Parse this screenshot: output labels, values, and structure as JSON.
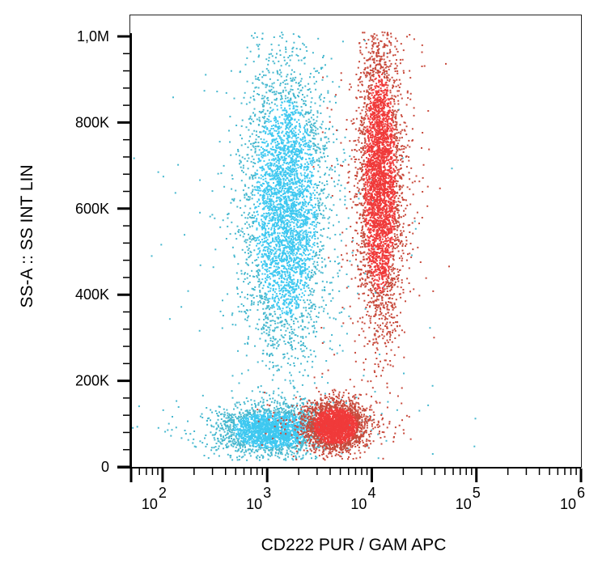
{
  "chart_data": {
    "type": "scatter",
    "title": "",
    "xlabel": "CD222 PUR / GAM APC",
    "ylabel": "SS-A :: SS INT LIN",
    "x_scale": "log",
    "xlim": [
      50,
      1000000
    ],
    "ylim": [
      0,
      1000000
    ],
    "grid": false,
    "legend": "none",
    "x_ticks": [
      {
        "value": 100,
        "base": "10",
        "exp": "2"
      },
      {
        "value": 1000,
        "base": "10",
        "exp": "3"
      },
      {
        "value": 10000,
        "base": "10",
        "exp": "4"
      },
      {
        "value": 100000,
        "base": "10",
        "exp": "5"
      },
      {
        "value": 1000000,
        "base": "10",
        "exp": "6"
      }
    ],
    "y_ticks": [
      {
        "value": 0,
        "label": "0"
      },
      {
        "value": 200000,
        "label": "200K"
      },
      {
        "value": 400000,
        "label": "400K"
      },
      {
        "value": 600000,
        "label": "600K"
      },
      {
        "value": 800000,
        "label": "800K"
      },
      {
        "value": 1000000,
        "label": "1,0M"
      }
    ],
    "series": [
      {
        "color": "#3ec8f0",
        "outer_color": "#47b8cf",
        "clusters": [
          {
            "x_center": 1500,
            "x_log_sd": 0.2,
            "y_center": 600000,
            "y_sd": 170000,
            "share": 0.62
          },
          {
            "x_center": 1100,
            "x_log_sd": 0.24,
            "y_center": 85000,
            "y_sd": 28000,
            "share": 0.38
          }
        ]
      },
      {
        "color": "#f03a3a",
        "outer_color": "#c84a3c",
        "clusters": [
          {
            "x_center": 12000,
            "x_log_sd": 0.1,
            "y_center": 660000,
            "y_sd": 170000,
            "share": 0.6
          },
          {
            "x_center": 4500,
            "x_log_sd": 0.14,
            "y_center": 95000,
            "y_sd": 28000,
            "share": 0.4
          }
        ]
      }
    ]
  }
}
